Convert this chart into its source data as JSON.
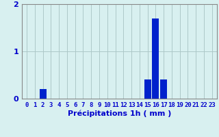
{
  "hours": [
    0,
    1,
    2,
    3,
    4,
    5,
    6,
    7,
    8,
    9,
    10,
    11,
    12,
    13,
    14,
    15,
    16,
    17,
    18,
    19,
    20,
    21,
    22,
    23
  ],
  "values": [
    0,
    0,
    0.2,
    0,
    0,
    0,
    0,
    0,
    0,
    0,
    0,
    0,
    0,
    0,
    0,
    0.4,
    1.7,
    0.4,
    0,
    0,
    0,
    0,
    0,
    0
  ],
  "bar_color": "#0022cc",
  "background_color": "#d8f0f0",
  "grid_color": "#adc8c8",
  "axis_color": "#888888",
  "text_color": "#0000cc",
  "xlabel": "Précipitations 1h ( mm )",
  "ylim": [
    0,
    2
  ],
  "yticks": [
    0,
    1,
    2
  ],
  "label_fontsize": 8,
  "tick_fontsize": 6.5,
  "ylabel_fontsize": 8
}
